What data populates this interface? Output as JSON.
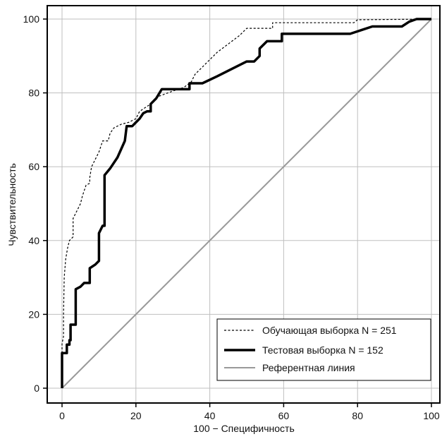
{
  "chart_data": {
    "type": "line",
    "xlabel": "100 − Специфичность",
    "ylabel": "Чувствительность",
    "xlim": [
      0,
      100
    ],
    "ylim": [
      0,
      100
    ],
    "x_ticks": [
      0,
      20,
      40,
      60,
      80,
      100
    ],
    "y_ticks": [
      0,
      20,
      40,
      60,
      80,
      100
    ],
    "grid": true,
    "legend_position": "bottom-right",
    "series": [
      {
        "name": "Обучающая выборка N = 251",
        "style": "dashed",
        "color": "#000000",
        "points": [
          [
            0,
            0
          ],
          [
            0,
            12
          ],
          [
            0.4,
            14
          ],
          [
            0.4,
            20
          ],
          [
            0.6,
            30
          ],
          [
            1,
            35
          ],
          [
            1.5,
            38
          ],
          [
            2,
            40
          ],
          [
            3,
            41
          ],
          [
            3,
            46
          ],
          [
            4,
            48
          ],
          [
            5,
            50
          ],
          [
            5.5,
            52
          ],
          [
            6.5,
            55
          ],
          [
            7.5,
            55.5
          ],
          [
            7.5,
            57
          ],
          [
            8,
            60
          ],
          [
            9,
            62
          ],
          [
            10,
            64
          ],
          [
            11,
            67
          ],
          [
            12.5,
            67
          ],
          [
            13,
            69
          ],
          [
            14,
            70.5
          ],
          [
            16,
            71.5
          ],
          [
            18,
            72
          ],
          [
            20,
            73
          ],
          [
            21,
            75
          ],
          [
            22.5,
            76
          ],
          [
            24,
            77
          ],
          [
            25,
            78
          ],
          [
            26,
            79
          ],
          [
            30,
            80.5
          ],
          [
            33,
            81.5
          ],
          [
            35,
            83
          ],
          [
            36,
            85
          ],
          [
            38,
            87
          ],
          [
            40,
            89
          ],
          [
            42,
            91
          ],
          [
            44,
            92.5
          ],
          [
            46,
            94
          ],
          [
            48,
            95.5
          ],
          [
            50,
            97.5
          ],
          [
            57,
            97.5
          ],
          [
            57,
            99
          ],
          [
            79,
            99
          ],
          [
            80,
            99.8
          ],
          [
            100,
            100
          ]
        ]
      },
      {
        "name": "Тестовая выборка N = 152",
        "style": "solid-thick",
        "color": "#000000",
        "points": [
          [
            0,
            0
          ],
          [
            0,
            9.5
          ],
          [
            1.3,
            9.5
          ],
          [
            1.3,
            11.8
          ],
          [
            2,
            11.8
          ],
          [
            2,
            13
          ],
          [
            2.3,
            13
          ],
          [
            2.3,
            17.2
          ],
          [
            3.7,
            17.2
          ],
          [
            3.7,
            26.8
          ],
          [
            5,
            27.5
          ],
          [
            6,
            28.5
          ],
          [
            7.5,
            28.5
          ],
          [
            7.5,
            32.5
          ],
          [
            9,
            33.5
          ],
          [
            10,
            34.5
          ],
          [
            10,
            42
          ],
          [
            11,
            44
          ],
          [
            11.5,
            44
          ],
          [
            11.5,
            57.7
          ],
          [
            13,
            59.5
          ],
          [
            15,
            62.5
          ],
          [
            17,
            67
          ],
          [
            17.5,
            71
          ],
          [
            19,
            71
          ],
          [
            20,
            72
          ],
          [
            21,
            73
          ],
          [
            22,
            74.5
          ],
          [
            23,
            75
          ],
          [
            24,
            75
          ],
          [
            24,
            77
          ],
          [
            25.5,
            78.5
          ],
          [
            27,
            81
          ],
          [
            34.5,
            81
          ],
          [
            34.5,
            82.6
          ],
          [
            38,
            82.6
          ],
          [
            42,
            84.5
          ],
          [
            46,
            86.5
          ],
          [
            50,
            88.5
          ],
          [
            52,
            88.5
          ],
          [
            53.5,
            90
          ],
          [
            53.5,
            92
          ],
          [
            55.5,
            94
          ],
          [
            57.5,
            94
          ],
          [
            59.5,
            94
          ],
          [
            59.5,
            96
          ],
          [
            78,
            96
          ],
          [
            81,
            97
          ],
          [
            84,
            98
          ],
          [
            86,
            98
          ],
          [
            92,
            98
          ],
          [
            94,
            99.3
          ],
          [
            96,
            100
          ],
          [
            100,
            100
          ]
        ]
      },
      {
        "name": "Референтная линия",
        "style": "solid",
        "color": "#999999",
        "points": [
          [
            0,
            0
          ],
          [
            100,
            100
          ]
        ]
      }
    ]
  }
}
